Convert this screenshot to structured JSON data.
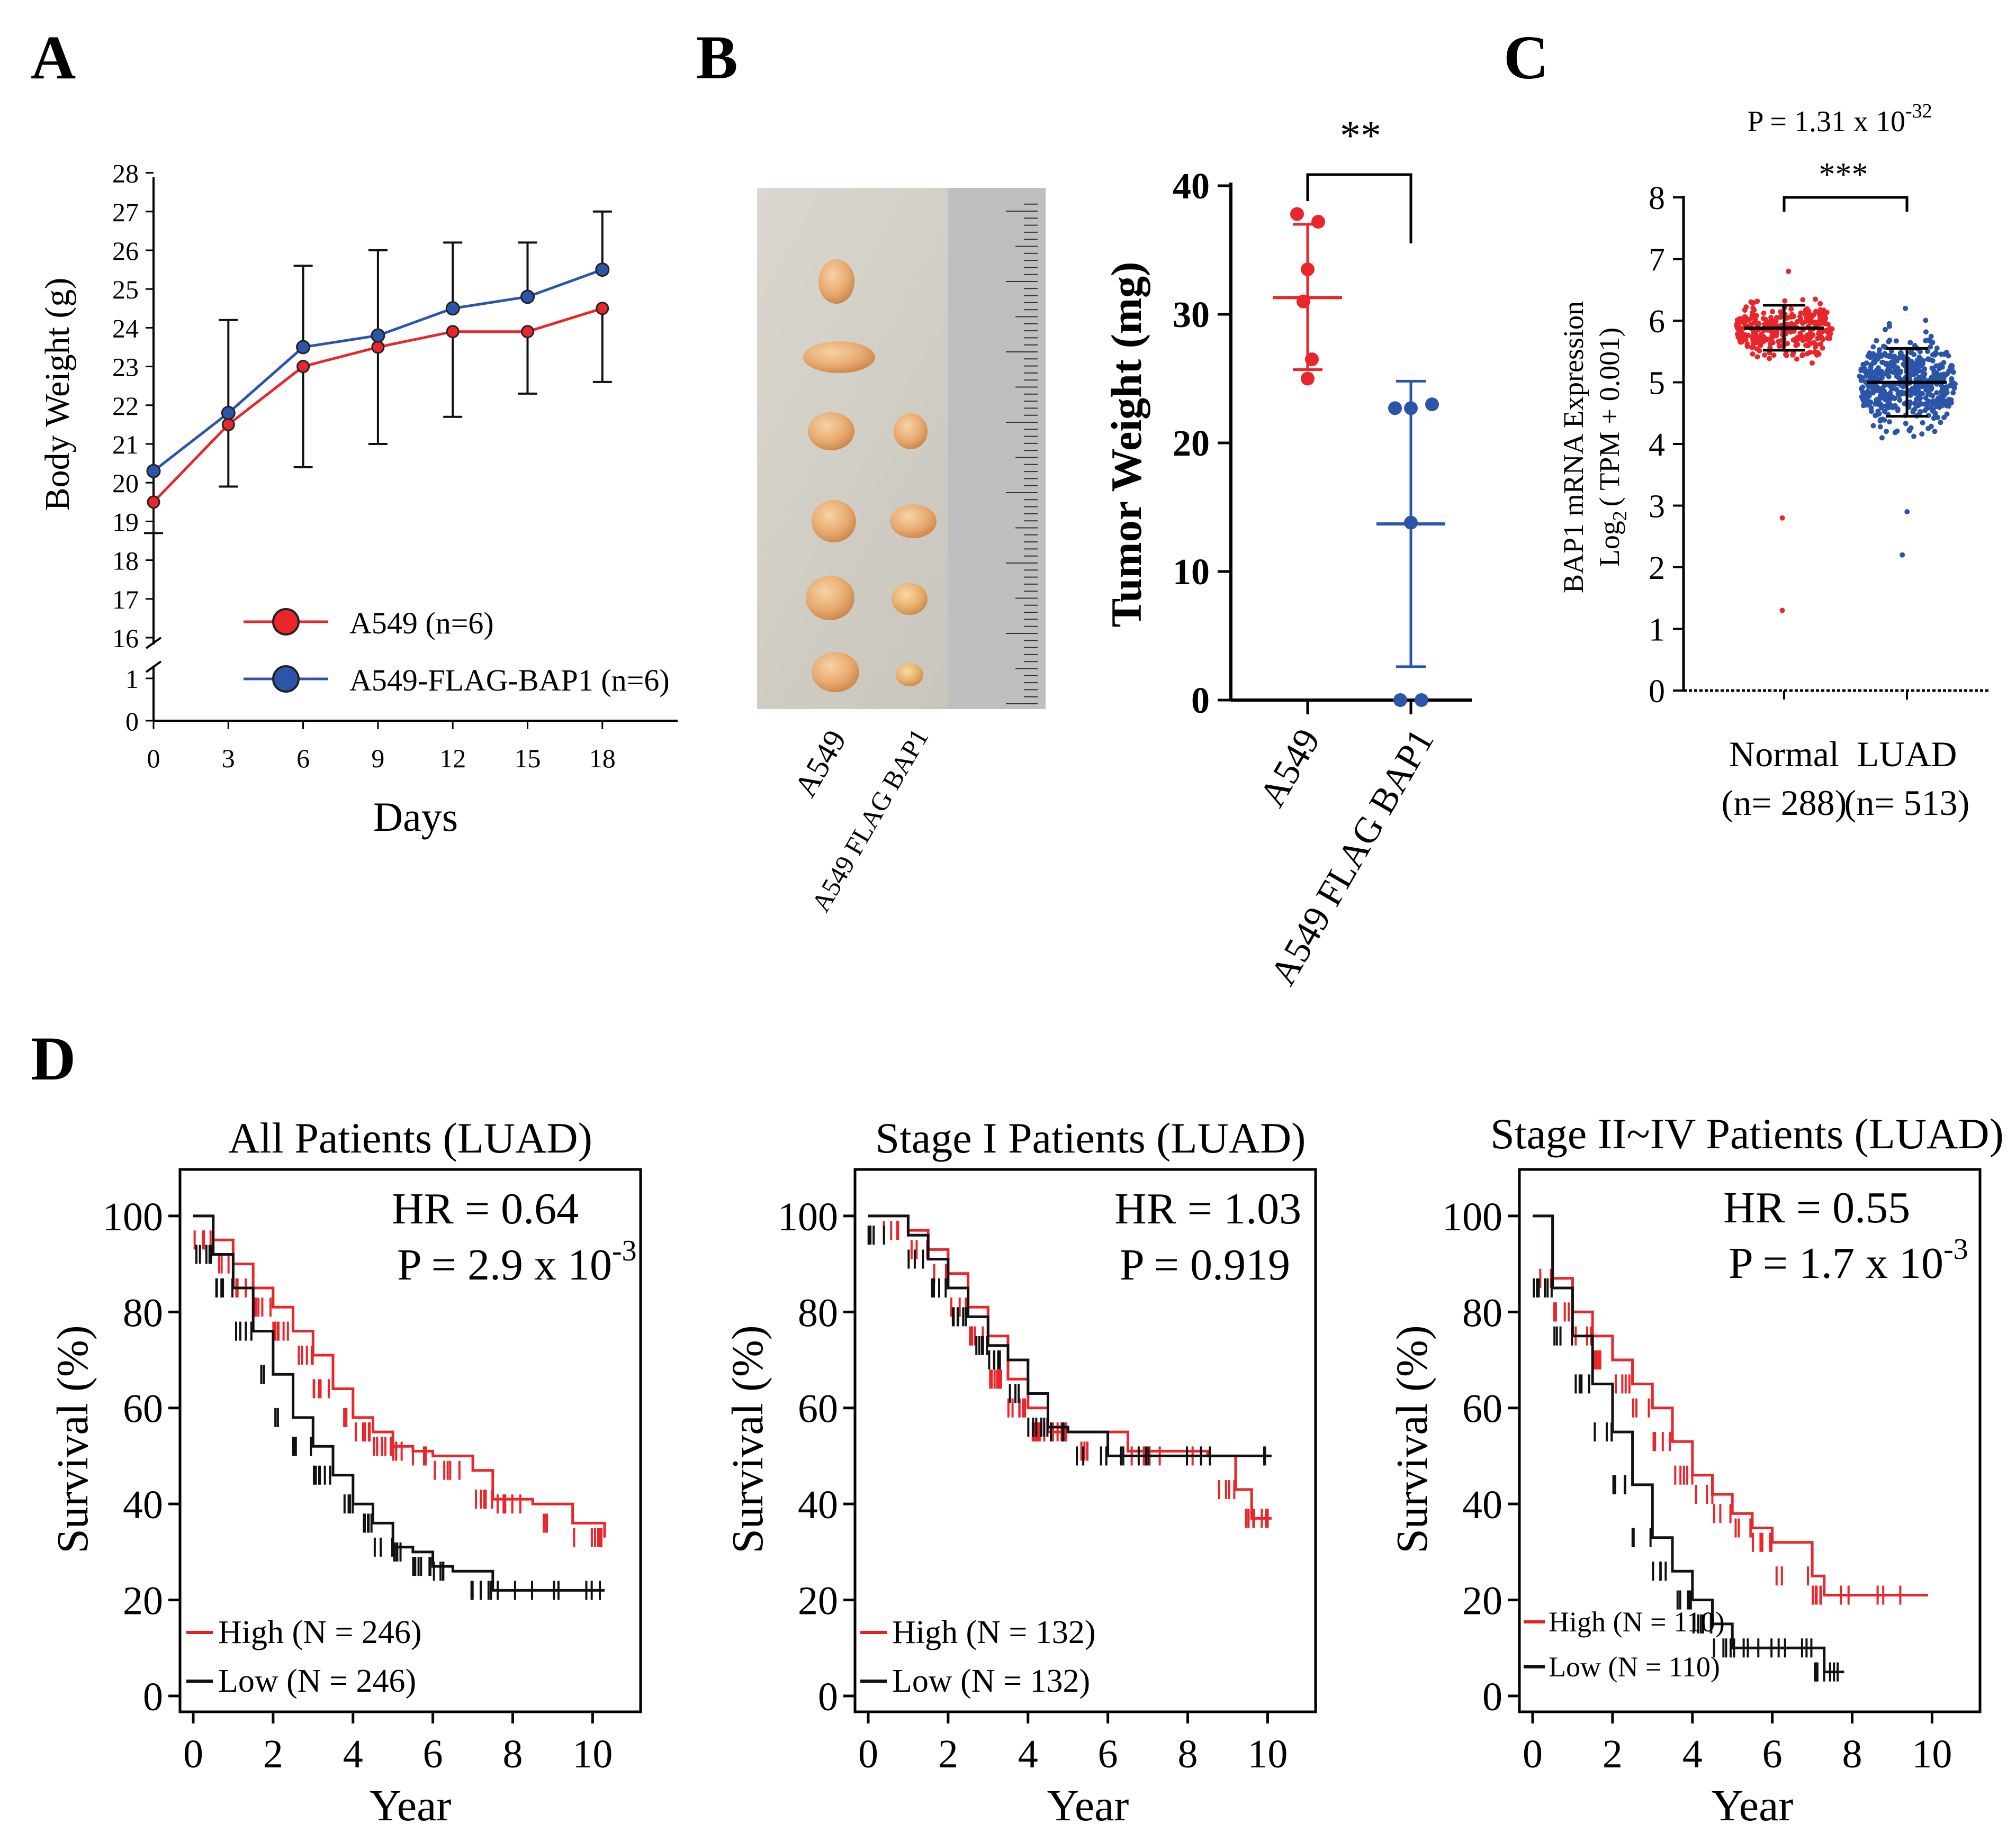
{
  "colors": {
    "red": "#e8262b",
    "blue": "#2a55a8",
    "black": "#111111",
    "blue_dot": "#1d3fa0",
    "red_km": "#e81e25"
  },
  "panel_labels": {
    "a": "A",
    "b": "B",
    "c": "C",
    "d": "D"
  },
  "chart_data": [
    {
      "id": "A",
      "type": "line",
      "xlabel": "Days",
      "ylabel": "Body Weight (g)",
      "x": [
        0,
        3,
        6,
        9,
        12,
        15,
        18
      ],
      "xticks": [
        "0",
        "3",
        "6",
        "9",
        "12",
        "15",
        "18"
      ],
      "yticks_upper": [
        "16",
        "17",
        "18",
        "19",
        "20",
        "21",
        "22",
        "23",
        "24",
        "25",
        "26",
        "27",
        "28"
      ],
      "yticks_lower": [
        "0",
        "1"
      ],
      "ylim": [
        16,
        28
      ],
      "axis_break": true,
      "series": [
        {
          "name": "A549 (n=6)",
          "color": "red",
          "values": [
            19.5,
            21.5,
            23.0,
            23.5,
            23.9,
            23.9,
            24.5
          ],
          "err": [
            0.8,
            1.6,
            2.6,
            2.5,
            2.2,
            1.6,
            1.9
          ]
        },
        {
          "name": "A549-FLAG-BAP1 (n=6)",
          "color": "blue",
          "values": [
            20.3,
            21.8,
            23.5,
            23.8,
            24.5,
            24.8,
            25.5
          ],
          "err": [
            0,
            2.4,
            2.1,
            2.2,
            1.7,
            1.4,
            1.5
          ]
        }
      ]
    },
    {
      "id": "B",
      "type": "scatter",
      "image_labels": [
        "A549",
        "A549 FLAG BAP1"
      ],
      "ylabel": "Tumor Weight (mg)",
      "ylim": [
        0,
        40
      ],
      "yticks": [
        "0",
        "10",
        "20",
        "30",
        "40"
      ],
      "categories": [
        "A549",
        "A549 FLAG BAP1"
      ],
      "significance": "**",
      "groups": [
        {
          "name": "A549",
          "color": "red",
          "mean": 31.3,
          "sd_low": 25.7,
          "sd_high": 37.0,
          "points": [
            37.8,
            37.2,
            33.5,
            31.0,
            26.5,
            25.0
          ]
        },
        {
          "name": "A549 FLAG BAP1",
          "color": "blue",
          "mean": 13.7,
          "sd_low": 2.6,
          "sd_high": 24.8,
          "points": [
            22.7,
            22.7,
            23.0,
            13.8,
            0,
            0
          ]
        }
      ]
    },
    {
      "id": "C",
      "type": "scatter",
      "pvalue_base": "P = 1.31 x 10",
      "pvalue_exp": "-32",
      "significance": "***",
      "ylabel_line1": "BAP1 mRNA Expression",
      "ylabel_line2": "Log",
      "ylabel_sub": "2",
      "ylabel_line2_rest": "( TPM + 0.001)",
      "ylim": [
        0,
        8
      ],
      "yticks": [
        "0",
        "1",
        "2",
        "3",
        "4",
        "5",
        "6",
        "7",
        "8"
      ],
      "groups": [
        {
          "name": "Normal",
          "n_label": "(n= 288)",
          "color": "red",
          "n": 288,
          "median": 5.88,
          "q1": 5.52,
          "q3": 6.25,
          "outliers": [
            2.8,
            1.3,
            6.8
          ]
        },
        {
          "name": "LUAD",
          "n_label": "(n= 513)",
          "color": "blue",
          "n": 513,
          "median": 5.0,
          "q1": 4.45,
          "q3": 5.55,
          "outliers": [
            2.2,
            2.9,
            6.2
          ]
        }
      ]
    },
    {
      "id": "D1",
      "type": "line",
      "title": "All Patients (LUAD)",
      "hr": "HR = 0.64",
      "p_base": "P = 2.9 x 10",
      "p_exp": "-3",
      "xlabel": "Year",
      "ylabel": "Survival (%)",
      "xticks": [
        "0",
        "2",
        "4",
        "6",
        "8",
        "10"
      ],
      "yticks": [
        "0",
        "20",
        "40",
        "60",
        "80",
        "100"
      ],
      "xlim": [
        0,
        10
      ],
      "ylim": [
        0,
        100
      ],
      "legend": [
        "High (N = 246)",
        "Low  (N = 246)"
      ],
      "series": [
        {
          "name": "High",
          "color": "red",
          "x": [
            0,
            0.5,
            1.0,
            1.5,
            2.0,
            2.5,
            3.0,
            3.5,
            4.0,
            4.5,
            5.0,
            5.5,
            6.0,
            7.0,
            7.5,
            8.5,
            9.5,
            10.3
          ],
          "y": [
            100,
            95,
            90,
            85,
            81,
            76,
            71,
            64,
            58,
            55,
            52,
            51,
            50,
            47,
            41,
            40,
            36,
            33
          ]
        },
        {
          "name": "Low",
          "color": "black",
          "x": [
            0,
            0.5,
            1.0,
            1.5,
            2.0,
            2.5,
            3.0,
            3.5,
            4.0,
            4.5,
            5.0,
            5.5,
            6.0,
            6.5,
            7.5,
            8.5,
            10.3
          ],
          "y": [
            100,
            92,
            85,
            76,
            67,
            58,
            52,
            46,
            40,
            36,
            31,
            30,
            27,
            26,
            22,
            22,
            22
          ]
        }
      ]
    },
    {
      "id": "D2",
      "type": "line",
      "title": "Stage I Patients (LUAD)",
      "hr": "HR = 1.03",
      "p_text": "P = 0.919",
      "xlabel": "Year",
      "ylabel": "Survival (%)",
      "xticks": [
        "0",
        "2",
        "4",
        "6",
        "8",
        "10"
      ],
      "yticks": [
        "0",
        "20",
        "40",
        "60",
        "80",
        "100"
      ],
      "xlim": [
        0,
        10
      ],
      "ylim": [
        0,
        100
      ],
      "legend": [
        "High (N = 132)",
        "Low (N = 132)"
      ],
      "series": [
        {
          "name": "High",
          "color": "red",
          "x": [
            0,
            1.0,
            1.5,
            2.0,
            2.5,
            3.0,
            3.5,
            4.0,
            4.5,
            5.0,
            6.5,
            8.5,
            9.2,
            9.6,
            10.1
          ],
          "y": [
            100,
            97,
            93,
            88,
            81,
            75,
            66,
            60,
            55,
            55,
            51,
            50,
            43,
            37,
            37
          ]
        },
        {
          "name": "Low",
          "color": "black",
          "x": [
            0,
            1.0,
            1.5,
            2.0,
            2.5,
            3.0,
            3.5,
            4.0,
            4.5,
            5.0,
            6.0,
            8.0,
            10.1
          ],
          "y": [
            100,
            96,
            91,
            85,
            79,
            73,
            70,
            63,
            56,
            55,
            50,
            50,
            50
          ]
        }
      ]
    },
    {
      "id": "D3",
      "type": "line",
      "title": "Stage II~IV Patients (LUAD)",
      "hr": "HR = 0.55",
      "p_base": "P = 1.7 x 10",
      "p_exp": "-3",
      "xlabel": "Year",
      "ylabel": "Survival (%)",
      "xticks": [
        "0",
        "2",
        "4",
        "6",
        "8",
        "10"
      ],
      "yticks": [
        "0",
        "20",
        "40",
        "60",
        "80",
        "100"
      ],
      "xlim": [
        0,
        10
      ],
      "ylim": [
        0,
        100
      ],
      "legend": [
        "High (N = 110)",
        "Low (N = 110)"
      ],
      "series": [
        {
          "name": "High",
          "color": "red",
          "x": [
            0,
            0.5,
            1.0,
            1.5,
            2.0,
            2.5,
            3.0,
            3.5,
            4.0,
            4.5,
            5.0,
            5.5,
            6.0,
            7.0,
            7.3,
            9.9
          ],
          "y": [
            100,
            87,
            80,
            75,
            70,
            65,
            60,
            53,
            46,
            42,
            38,
            35,
            32,
            25,
            21,
            21
          ]
        },
        {
          "name": "Low",
          "color": "black",
          "x": [
            0,
            0.5,
            1.0,
            1.5,
            2.0,
            2.5,
            3.0,
            3.5,
            4.0,
            4.5,
            5.0,
            6.0,
            7.0,
            7.3,
            7.8
          ],
          "y": [
            100,
            85,
            75,
            65,
            55,
            44,
            33,
            26,
            20,
            15,
            10,
            10,
            10,
            5,
            5
          ]
        }
      ]
    }
  ]
}
